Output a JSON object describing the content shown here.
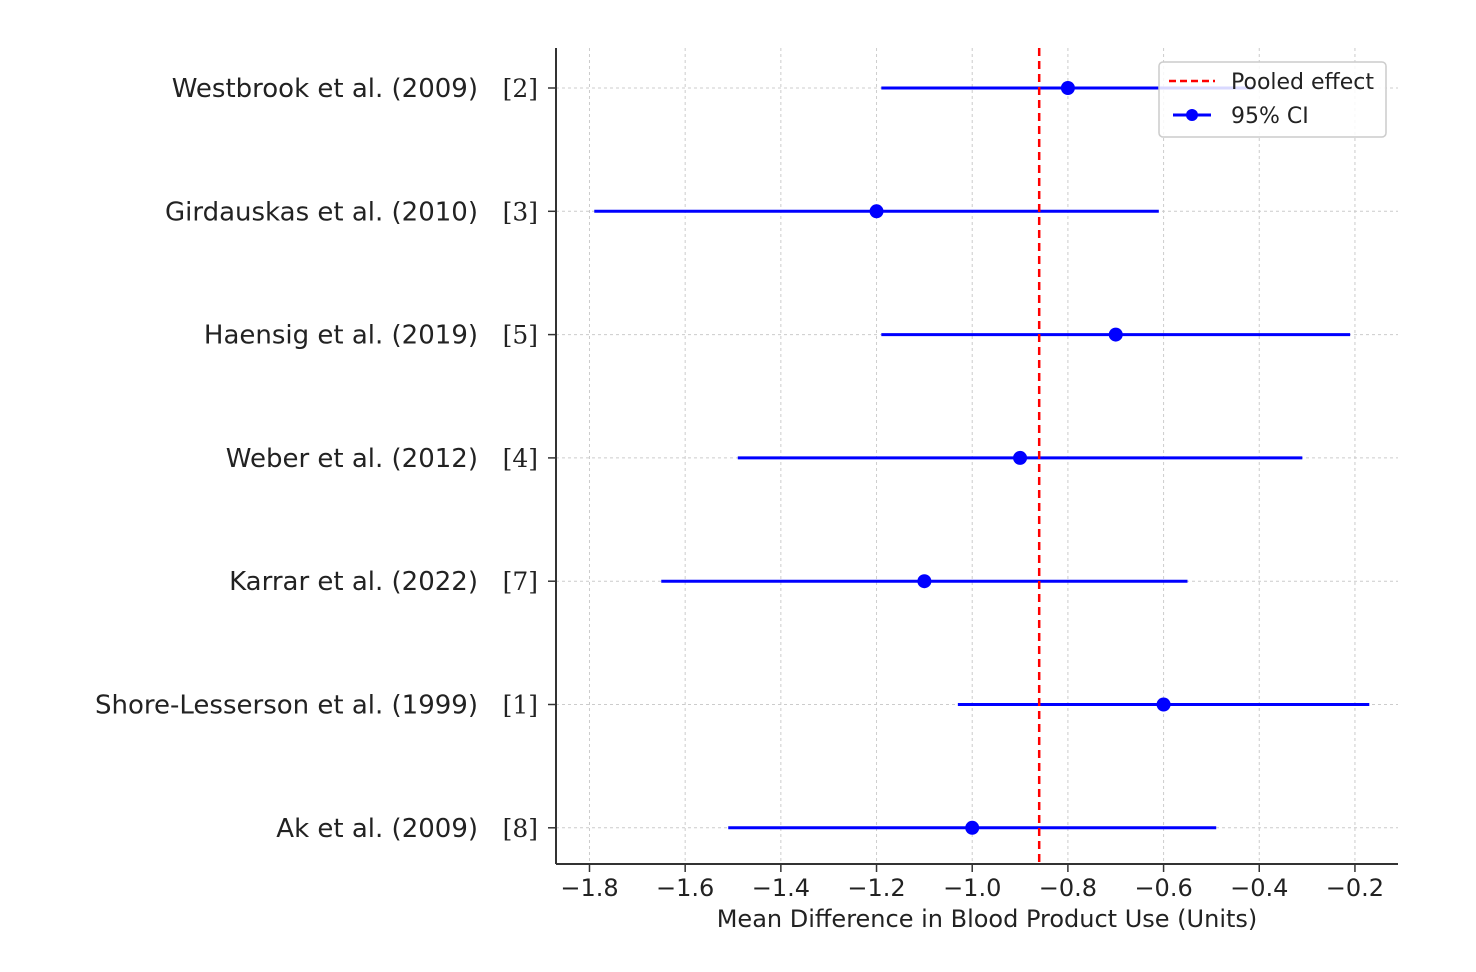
{
  "chart_data": {
    "type": "forest",
    "title": "",
    "xlabel": "Mean Difference in Blood Product Use (Units)",
    "ylabel": "",
    "xlim": [
      -1.87,
      -0.11
    ],
    "xticks": [
      -1.8,
      -1.6,
      -1.4,
      -1.2,
      -1.0,
      -0.8,
      -0.6,
      -0.4,
      -0.2
    ],
    "xtick_labels": [
      "−1.8",
      "−1.6",
      "−1.4",
      "−1.2",
      "−1.0",
      "−0.8",
      "−0.6",
      "−0.4",
      "−0.2"
    ],
    "grid": true,
    "legend_position": "top-right",
    "pooled_effect": -0.86,
    "legend": [
      {
        "label": "Pooled effect",
        "style": "dashed-line",
        "color": "#ff0000"
      },
      {
        "label": "95% CI",
        "style": "line-marker",
        "color": "#0000ff"
      }
    ],
    "studies": [
      {
        "label": "Westbrook et al. (2009)",
        "ref": "[2]",
        "mean": -0.8,
        "ci_low": -1.19,
        "ci_high": -0.41
      },
      {
        "label": "Girdauskas et al. (2010)",
        "ref": "[3]",
        "mean": -1.2,
        "ci_low": -1.79,
        "ci_high": -0.61
      },
      {
        "label": "Haensig et al. (2019)",
        "ref": "[5]",
        "mean": -0.7,
        "ci_low": -1.19,
        "ci_high": -0.21
      },
      {
        "label": "Weber et al. (2012)",
        "ref": "[4]",
        "mean": -0.9,
        "ci_low": -1.49,
        "ci_high": -0.31
      },
      {
        "label": "Karrar et al. (2022)",
        "ref": "[7]",
        "mean": -1.1,
        "ci_low": -1.65,
        "ci_high": -0.55
      },
      {
        "label": "Shore-Lesserson et al. (1999)",
        "ref": "[1]",
        "mean": -0.6,
        "ci_low": -1.03,
        "ci_high": -0.17
      },
      {
        "label": "Ak et al. (2009)",
        "ref": "[8]",
        "mean": -1.0,
        "ci_low": -1.51,
        "ci_high": -0.49
      }
    ],
    "colors": {
      "ci": "#0000ff",
      "pooled": "#ff0000",
      "axis": "#333333",
      "grid": "#cccccc",
      "text": "#222222"
    }
  }
}
